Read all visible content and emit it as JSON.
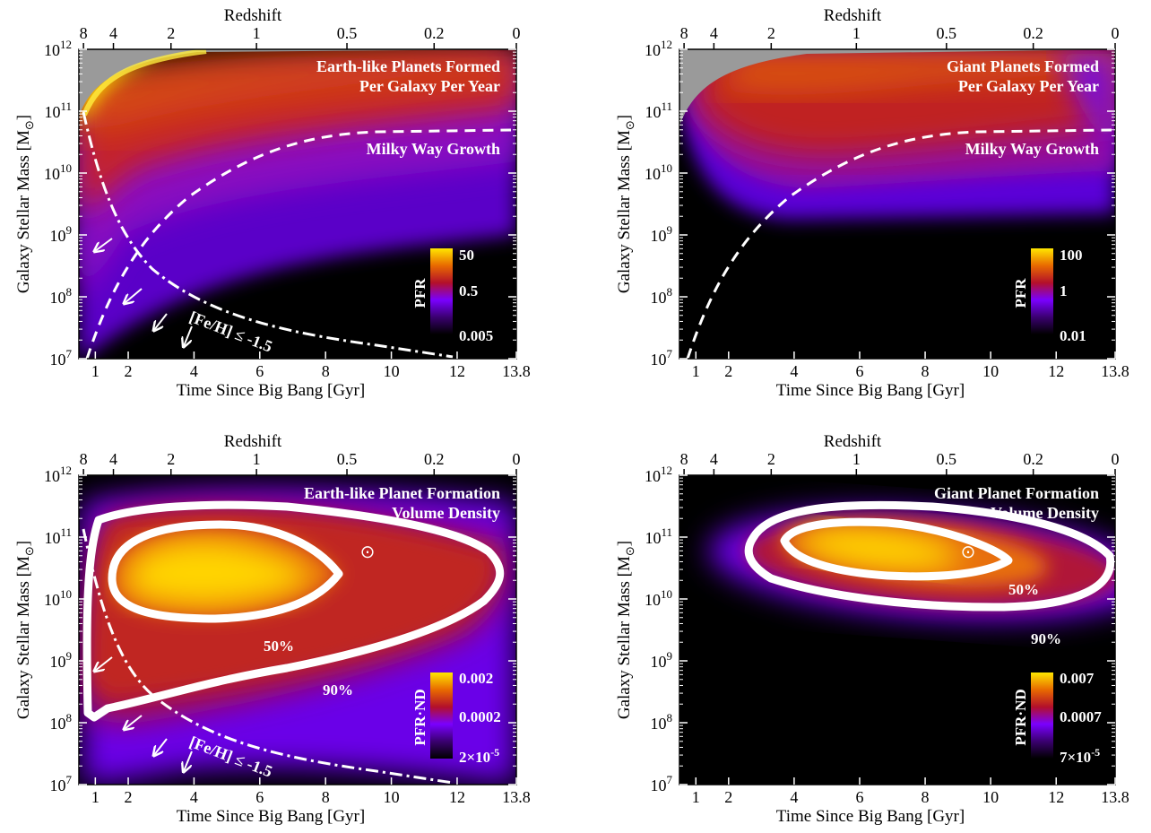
{
  "chart_data": [
    {
      "type": "heatmap",
      "title": "Earth-like Planets Formed",
      "subtitle": "Per Galaxy Per Year",
      "xlabel": "Time Since Big Bang [Gyr]",
      "ylabel": "Galaxy Stellar Mass [M",
      "ylabel_sub": "⊙",
      "top_axis_label": "Redshift",
      "xticks": [
        "1",
        "2",
        "4",
        "6",
        "8",
        "10",
        "12",
        "13.8"
      ],
      "xtick_values": [
        1,
        2,
        4,
        6,
        8,
        10,
        12,
        13.8
      ],
      "redshift_ticks": [
        "8",
        "4",
        "2",
        "1",
        "0.5",
        "0.2",
        "0"
      ],
      "redshift_tick_times": [
        0.64,
        1.55,
        3.3,
        5.9,
        8.65,
        11.3,
        13.8
      ],
      "yticks_exp": [
        "7",
        "8",
        "9",
        "10",
        "11",
        "12"
      ],
      "xlim": [
        0.5,
        13.8
      ],
      "ylim_log10": [
        7,
        12
      ],
      "colorbar_label": "PFR",
      "colorbar_ticks": [
        "50",
        "0.5",
        "0.005"
      ],
      "curve_label": "Milky Way Growth",
      "metallicity_label": "[Fe/H] ≤ -1.5",
      "colors": {
        "low": "#000000",
        "mid1": "#7a00ff",
        "mid2": "#b3102a",
        "mid3": "#e86a00",
        "high": "#ffe600",
        "undefined": "#999999"
      }
    },
    {
      "type": "heatmap",
      "title": "Giant Planets Formed",
      "subtitle": "Per Galaxy Per Year",
      "xlabel": "Time Since Big Bang [Gyr]",
      "ylabel": "Galaxy Stellar Mass [M",
      "ylabel_sub": "⊙",
      "top_axis_label": "Redshift",
      "xticks": [
        "1",
        "2",
        "4",
        "6",
        "8",
        "10",
        "12",
        "13.8"
      ],
      "redshift_ticks": [
        "8",
        "4",
        "2",
        "1",
        "0.5",
        "0.2",
        "0"
      ],
      "yticks_exp": [
        "7",
        "8",
        "9",
        "10",
        "11",
        "12"
      ],
      "colorbar_label": "PFR",
      "colorbar_ticks": [
        "100",
        "1",
        "0.01"
      ],
      "curve_label": "Milky Way Growth"
    },
    {
      "type": "heatmap",
      "title": "Earth-like Planet Formation",
      "subtitle": "Volume Density",
      "xlabel": "Time Since Big Bang [Gyr]",
      "ylabel": "Galaxy Stellar Mass [M",
      "ylabel_sub": "⊙",
      "top_axis_label": "Redshift",
      "xticks": [
        "1",
        "2",
        "4",
        "6",
        "8",
        "10",
        "12",
        "13.8"
      ],
      "redshift_ticks": [
        "8",
        "4",
        "2",
        "1",
        "0.5",
        "0.2",
        "0"
      ],
      "yticks_exp": [
        "7",
        "8",
        "9",
        "10",
        "11",
        "12"
      ],
      "colorbar_label": "PFR·ND",
      "colorbar_ticks": [
        "0.002",
        "0.0002",
        "2×10"
      ],
      "colorbar_last_exp": "-5",
      "contour_labels": [
        "50%",
        "90%"
      ],
      "metallicity_label": "[Fe/H] ≤ -1.5",
      "sun_symbol": "⊙",
      "sun_position": {
        "t": 9.35,
        "log_mass": 10.72
      }
    },
    {
      "type": "heatmap",
      "title": "Giant Planet Formation",
      "subtitle": "Volume Density",
      "xlabel": "Time Since Big Bang [Gyr]",
      "ylabel": "Galaxy Stellar Mass [M",
      "ylabel_sub": "⊙",
      "top_axis_label": "Redshift",
      "xticks": [
        "1",
        "2",
        "4",
        "6",
        "8",
        "10",
        "12",
        "13.8"
      ],
      "redshift_ticks": [
        "8",
        "4",
        "2",
        "1",
        "0.5",
        "0.2",
        "0"
      ],
      "yticks_exp": [
        "7",
        "8",
        "9",
        "10",
        "11",
        "12"
      ],
      "colorbar_label": "PFR·ND",
      "colorbar_ticks": [
        "0.007",
        "0.0007",
        "7×10"
      ],
      "colorbar_last_exp": "-5",
      "contour_labels": [
        "50%",
        "90%"
      ],
      "sun_symbol": "⊙",
      "sun_position": {
        "t": 9.35,
        "log_mass": 10.72
      }
    }
  ]
}
